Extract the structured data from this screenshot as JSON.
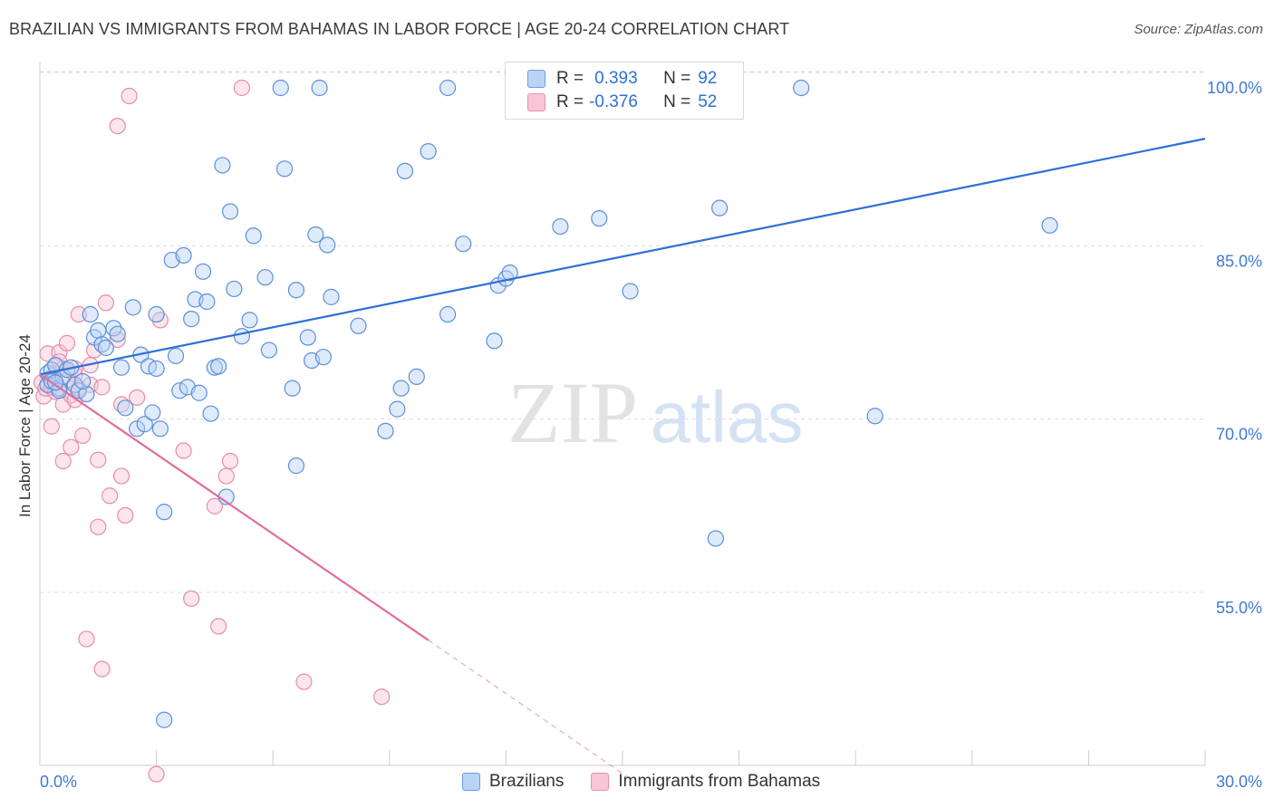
{
  "title": "BRAZILIAN VS IMMIGRANTS FROM BAHAMAS IN LABOR FORCE | AGE 20-24 CORRELATION CHART",
  "source": "Source: ZipAtlas.com",
  "watermark": {
    "zip": "ZIP",
    "atlas": "atlas"
  },
  "legend": {
    "r_label": "R =",
    "n_label": "N =",
    "rows": [
      {
        "series": "Brazilians",
        "r": "0.393",
        "n": "92"
      },
      {
        "series": "Immigrants from Bahamas",
        "r": "-0.376",
        "n": "52"
      }
    ]
  },
  "colors": {
    "blue": "#2f6fd6",
    "blue_fill": "#b9d3f4",
    "pink": "#e06d9a",
    "pink_fill": "#f8c6d6",
    "tick_text": "#3f79d6"
  },
  "chart_data": {
    "type": "scatter",
    "title": "BRAZILIAN VS IMMIGRANTS FROM BAHAMAS IN LABOR FORCE | AGE 20-24 CORRELATION CHART",
    "xlabel": "",
    "ylabel": "In Labor Force | Age 20-24",
    "xlim": [
      0,
      30
    ],
    "ylim": [
      40,
      102
    ],
    "x_tick_labels": [
      "0.0%",
      "30.0%"
    ],
    "y_ticks": [
      55,
      70,
      85,
      100
    ],
    "y_tick_labels": [
      "55.0%",
      "70.0%",
      "85.0%",
      "100.0%"
    ],
    "grid": "horizontal dashed",
    "legend_position": "top-center",
    "series": [
      {
        "name": "Brazilians",
        "color": "#2f6fd6",
        "trend": {
          "x": [
            0,
            30
          ],
          "y": [
            75.2,
            95.6
          ],
          "style": "solid"
        },
        "points": [
          [
            0.2,
            75.3
          ],
          [
            0.2,
            74.3
          ],
          [
            0.3,
            75.6
          ],
          [
            0.3,
            74.6
          ],
          [
            0.4,
            76.0
          ],
          [
            0.5,
            74.0
          ],
          [
            0.5,
            73.8
          ],
          [
            0.6,
            75.0
          ],
          [
            0.7,
            75.6
          ],
          [
            0.8,
            75.8
          ],
          [
            0.9,
            74.3
          ],
          [
            1.0,
            73.8
          ],
          [
            1.2,
            73.5
          ],
          [
            1.3,
            80.4
          ],
          [
            1.4,
            78.4
          ],
          [
            1.5,
            79.0
          ],
          [
            1.6,
            77.8
          ],
          [
            1.7,
            77.5
          ],
          [
            1.9,
            79.2
          ],
          [
            2.0,
            78.7
          ],
          [
            2.1,
            75.8
          ],
          [
            2.2,
            72.3
          ],
          [
            2.4,
            81.0
          ],
          [
            2.5,
            70.5
          ],
          [
            2.6,
            76.9
          ],
          [
            2.7,
            70.9
          ],
          [
            2.8,
            75.9
          ],
          [
            2.9,
            71.9
          ],
          [
            3.0,
            75.7
          ],
          [
            3.0,
            80.4
          ],
          [
            3.1,
            70.5
          ],
          [
            3.2,
            63.3
          ],
          [
            3.2,
            45.3
          ],
          [
            3.4,
            85.1
          ],
          [
            3.5,
            76.8
          ],
          [
            3.6,
            73.8
          ],
          [
            3.7,
            85.5
          ],
          [
            3.8,
            74.1
          ],
          [
            3.9,
            80.0
          ],
          [
            4.0,
            81.7
          ],
          [
            4.1,
            73.6
          ],
          [
            4.2,
            84.1
          ],
          [
            4.3,
            81.5
          ],
          [
            4.4,
            71.8
          ],
          [
            4.5,
            75.8
          ],
          [
            4.6,
            75.9
          ],
          [
            4.7,
            93.3
          ],
          [
            4.8,
            64.6
          ],
          [
            4.9,
            89.3
          ],
          [
            5.0,
            82.6
          ],
          [
            5.2,
            78.5
          ],
          [
            5.4,
            79.9
          ],
          [
            5.5,
            87.2
          ],
          [
            5.8,
            83.6
          ],
          [
            5.9,
            77.3
          ],
          [
            6.2,
            100.0
          ],
          [
            6.3,
            93.0
          ],
          [
            6.5,
            74.0
          ],
          [
            6.6,
            82.5
          ],
          [
            6.6,
            67.3
          ],
          [
            6.9,
            78.4
          ],
          [
            7.0,
            76.4
          ],
          [
            7.1,
            87.3
          ],
          [
            7.2,
            100.0
          ],
          [
            7.3,
            76.7
          ],
          [
            7.4,
            86.4
          ],
          [
            7.5,
            81.9
          ],
          [
            8.2,
            79.4
          ],
          [
            8.9,
            70.3
          ],
          [
            9.2,
            72.2
          ],
          [
            9.3,
            74.0
          ],
          [
            9.4,
            92.8
          ],
          [
            9.7,
            75.0
          ],
          [
            10.0,
            94.5
          ],
          [
            10.5,
            80.4
          ],
          [
            10.5,
            100.0
          ],
          [
            10.9,
            86.5
          ],
          [
            11.7,
            78.1
          ],
          [
            11.8,
            82.9
          ],
          [
            12.0,
            83.5
          ],
          [
            12.1,
            84.0
          ],
          [
            13.4,
            88.0
          ],
          [
            14.4,
            88.7
          ],
          [
            14.6,
            100.0
          ],
          [
            15.2,
            82.4
          ],
          [
            17.4,
            61.0
          ],
          [
            17.5,
            89.6
          ],
          [
            19.6,
            100.0
          ],
          [
            21.5,
            71.6
          ],
          [
            26.0,
            88.1
          ],
          [
            0.4,
            74.5
          ],
          [
            1.1,
            74.6
          ]
        ]
      },
      {
        "name": "Immigrants from Bahamas",
        "color": "#e06d9a",
        "trend": {
          "x": [
            0,
            10
          ],
          "y": [
            75.2,
            52.2
          ],
          "style": "solid",
          "extended_x": [
            10,
            15.2
          ],
          "extended_y": [
            52.2,
            40.2
          ],
          "extended_style": "dashed"
        },
        "points": [
          [
            0.05,
            74.5
          ],
          [
            0.1,
            73.3
          ],
          [
            0.15,
            74.0
          ],
          [
            0.2,
            77.0
          ],
          [
            0.3,
            74.1
          ],
          [
            0.3,
            70.7
          ],
          [
            0.4,
            73.7
          ],
          [
            0.4,
            75.3
          ],
          [
            0.5,
            77.1
          ],
          [
            0.5,
            76.3
          ],
          [
            0.6,
            75.7
          ],
          [
            0.6,
            67.7
          ],
          [
            0.6,
            72.6
          ],
          [
            0.7,
            77.9
          ],
          [
            0.8,
            73.4
          ],
          [
            0.8,
            68.9
          ],
          [
            0.9,
            75.2
          ],
          [
            0.9,
            73.0
          ],
          [
            1.0,
            80.4
          ],
          [
            1.0,
            74.0
          ],
          [
            1.1,
            69.9
          ],
          [
            1.2,
            52.3
          ],
          [
            1.3,
            74.3
          ],
          [
            1.4,
            77.3
          ],
          [
            1.5,
            67.8
          ],
          [
            1.5,
            62.0
          ],
          [
            1.6,
            74.1
          ],
          [
            1.6,
            49.7
          ],
          [
            1.7,
            81.4
          ],
          [
            1.8,
            64.7
          ],
          [
            2.0,
            78.2
          ],
          [
            2.0,
            96.7
          ],
          [
            2.1,
            66.4
          ],
          [
            2.2,
            63.0
          ],
          [
            2.3,
            99.3
          ],
          [
            2.5,
            73.2
          ],
          [
            3.0,
            40.6
          ],
          [
            3.1,
            79.9
          ],
          [
            3.7,
            68.6
          ],
          [
            3.9,
            55.8
          ],
          [
            4.5,
            63.8
          ],
          [
            4.6,
            53.4
          ],
          [
            4.8,
            66.4
          ],
          [
            4.9,
            67.7
          ],
          [
            5.2,
            100.0
          ],
          [
            6.8,
            48.6
          ],
          [
            8.8,
            47.3
          ],
          [
            1.3,
            76.0
          ],
          [
            0.9,
            75.7
          ],
          [
            0.3,
            74.9
          ],
          [
            0.7,
            74.7
          ],
          [
            2.1,
            72.6
          ]
        ]
      }
    ]
  }
}
